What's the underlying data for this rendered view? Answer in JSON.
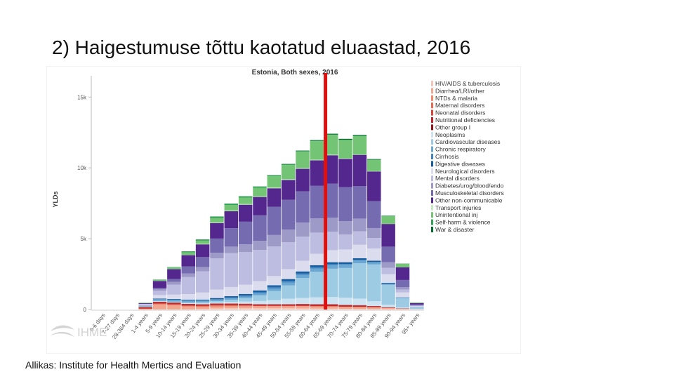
{
  "slide": {
    "title": "2) Haigestumuse tõttu kaotatud eluaastad, 2016",
    "source": "Allikas: Institute for Health Mertics and Evaluation"
  },
  "chart_data": {
    "type": "bar",
    "stacked": true,
    "title": "Estonia, Both sexes, 2016",
    "xlabel": "",
    "ylabel": "YLDs",
    "ylim": [
      0,
      16500
    ],
    "yticks": [
      0,
      5000,
      10000,
      15000
    ],
    "yticklabels": [
      "0",
      "5k",
      "10k",
      "15k"
    ],
    "grid": false,
    "legend_position": "right",
    "watermark": "IHME",
    "reference_line": {
      "category": "65-69 years",
      "color": "#e0100f",
      "note": "vertical red marker"
    },
    "categories": [
      "0-6 days",
      "7-27 days",
      "28-364 days",
      "1-4 years",
      "5-9 years",
      "10-14 years",
      "15-19 years",
      "20-24 years",
      "25-29 years",
      "30-34 years",
      "35-39 years",
      "40-44 years",
      "45-49 years",
      "50-54 years",
      "55-59 years",
      "60-64 years",
      "65-69 years",
      "70-74 years",
      "75-79 years",
      "80-84 years",
      "85-89 years",
      "90-94 years",
      "95+ years"
    ],
    "series": [
      {
        "name": "HIV/AIDS & tuberculosis",
        "color": "#f5c6b8",
        "values": [
          0,
          0,
          0,
          0,
          0,
          0,
          0,
          20,
          80,
          100,
          100,
          90,
          90,
          90,
          80,
          70,
          60,
          40,
          30,
          20,
          10,
          5,
          0
        ]
      },
      {
        "name": "Diarrhea/LRI/other",
        "color": "#f2a78e",
        "values": [
          0,
          0,
          0,
          30,
          350,
          300,
          200,
          150,
          120,
          120,
          120,
          120,
          120,
          120,
          130,
          130,
          130,
          120,
          120,
          110,
          80,
          40,
          10
        ]
      },
      {
        "name": "NTDs & malaria",
        "color": "#ee8a6e",
        "values": [
          0,
          0,
          0,
          10,
          30,
          30,
          30,
          30,
          30,
          30,
          30,
          30,
          30,
          30,
          30,
          30,
          30,
          30,
          30,
          30,
          20,
          10,
          0
        ]
      },
      {
        "name": "Maternal disorders",
        "color": "#e56a52",
        "values": [
          0,
          0,
          0,
          0,
          0,
          0,
          20,
          40,
          60,
          50,
          30,
          10,
          0,
          0,
          0,
          0,
          0,
          0,
          0,
          0,
          0,
          0,
          0
        ]
      },
      {
        "name": "Neonatal disorders",
        "color": "#d8463a",
        "values": [
          0,
          0,
          0,
          60,
          60,
          50,
          40,
          30,
          20,
          20,
          20,
          20,
          20,
          20,
          20,
          20,
          20,
          10,
          10,
          10,
          0,
          0,
          0
        ]
      },
      {
        "name": "Nutritional deficiencies",
        "color": "#c0282a",
        "values": [
          0,
          0,
          0,
          60,
          90,
          90,
          90,
          90,
          90,
          90,
          90,
          90,
          90,
          100,
          110,
          110,
          120,
          110,
          100,
          70,
          40,
          20,
          5
        ]
      },
      {
        "name": "Other group I",
        "color": "#8c1414",
        "values": [
          0,
          0,
          0,
          20,
          20,
          20,
          20,
          20,
          20,
          20,
          20,
          20,
          20,
          20,
          20,
          20,
          20,
          20,
          20,
          10,
          10,
          0,
          0
        ]
      },
      {
        "name": "Neoplasms",
        "color": "#cde3f2",
        "values": [
          0,
          0,
          0,
          20,
          30,
          30,
          40,
          50,
          70,
          100,
          150,
          220,
          290,
          380,
          430,
          480,
          500,
          500,
          460,
          330,
          180,
          70,
          20
        ]
      },
      {
        "name": "Cardiovascular diseases",
        "color": "#9ecbe4",
        "values": [
          0,
          0,
          0,
          10,
          30,
          40,
          60,
          80,
          100,
          160,
          240,
          400,
          650,
          950,
          1400,
          1800,
          2000,
          2100,
          2500,
          2600,
          1400,
          650,
          120
        ]
      },
      {
        "name": "Chronic respiratory",
        "color": "#6aa7d3",
        "values": [
          0,
          0,
          0,
          50,
          120,
          140,
          120,
          100,
          100,
          100,
          110,
          130,
          160,
          190,
          220,
          240,
          250,
          230,
          200,
          150,
          80,
          30,
          10
        ]
      },
      {
        "name": "Cirrhosis",
        "color": "#3f84c0",
        "values": [
          0,
          0,
          0,
          0,
          0,
          0,
          10,
          20,
          40,
          60,
          90,
          110,
          120,
          120,
          110,
          90,
          70,
          50,
          30,
          20,
          10,
          0,
          0
        ]
      },
      {
        "name": "Digestive diseases",
        "color": "#175c9c",
        "values": [
          0,
          0,
          0,
          20,
          40,
          50,
          60,
          70,
          80,
          90,
          100,
          110,
          120,
          130,
          140,
          140,
          140,
          130,
          120,
          100,
          60,
          30,
          10
        ]
      },
      {
        "name": "Neurological disorders",
        "color": "#dcdcef",
        "values": [
          0,
          0,
          0,
          60,
          250,
          300,
          400,
          500,
          600,
          650,
          650,
          650,
          650,
          700,
          750,
          800,
          850,
          900,
          950,
          850,
          600,
          350,
          60
        ]
      },
      {
        "name": "Mental disorders",
        "color": "#bcbde0",
        "values": [
          0,
          0,
          0,
          40,
          300,
          700,
          1200,
          1500,
          2200,
          2400,
          2300,
          2200,
          2100,
          1900,
          1700,
          1500,
          1300,
          1050,
          950,
          750,
          450,
          200,
          30
        ]
      },
      {
        "name": "Diabetes/urog/blood/endo",
        "color": "#9e9ac8",
        "values": [
          0,
          0,
          0,
          20,
          120,
          200,
          250,
          300,
          400,
          450,
          550,
          650,
          800,
          900,
          1000,
          1000,
          1000,
          950,
          900,
          700,
          400,
          180,
          30
        ]
      },
      {
        "name": "Musculoskeletal disorders",
        "color": "#756bb1",
        "values": [
          0,
          0,
          0,
          0,
          80,
          200,
          500,
          700,
          1000,
          1300,
          1600,
          1800,
          2000,
          2100,
          2200,
          2300,
          2400,
          2400,
          2300,
          1900,
          1100,
          500,
          60
        ]
      },
      {
        "name": "Other non-communicable",
        "color": "#54278f",
        "values": [
          0,
          0,
          0,
          50,
          500,
          700,
          800,
          900,
          1100,
          1200,
          1200,
          1300,
          1300,
          1400,
          1600,
          1800,
          2000,
          2000,
          2200,
          2100,
          1600,
          900,
          100
        ]
      },
      {
        "name": "Transport injuries",
        "color": "#c7e9c0",
        "values": [
          0,
          0,
          0,
          5,
          10,
          10,
          20,
          40,
          50,
          50,
          50,
          50,
          50,
          50,
          50,
          50,
          40,
          30,
          30,
          20,
          10,
          0,
          0
        ]
      },
      {
        "name": "Unintentional inj",
        "color": "#74c476",
        "values": [
          0,
          0,
          0,
          30,
          80,
          120,
          180,
          220,
          300,
          380,
          450,
          600,
          800,
          1000,
          1150,
          1300,
          1400,
          1300,
          1300,
          800,
          550,
          250,
          40
        ]
      },
      {
        "name": "Self-harm & violence",
        "color": "#31a354",
        "values": [
          0,
          0,
          0,
          0,
          10,
          20,
          60,
          80,
          100,
          100,
          90,
          80,
          70,
          60,
          50,
          40,
          30,
          20,
          20,
          10,
          10,
          0,
          0
        ]
      },
      {
        "name": "War & disaster",
        "color": "#006d2c",
        "values": [
          0,
          0,
          0,
          0,
          0,
          0,
          10,
          10,
          10,
          10,
          10,
          10,
          10,
          20,
          30,
          40,
          50,
          60,
          60,
          40,
          20,
          10,
          0
        ]
      }
    ]
  }
}
